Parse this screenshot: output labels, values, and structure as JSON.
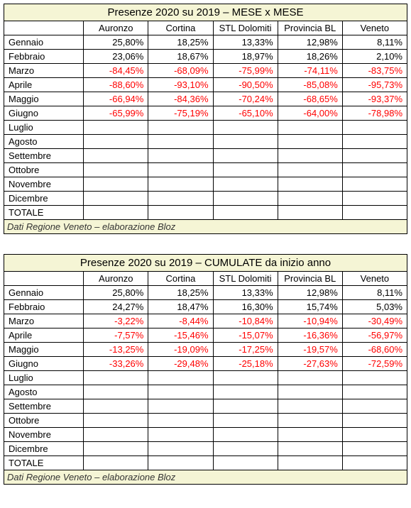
{
  "colors": {
    "title_bg": "#f5f5d5",
    "border": "#000000",
    "neg": "#ff0000",
    "pos": "#000000"
  },
  "columns": [
    "Auronzo",
    "Cortina",
    "STL Dolomiti",
    "Provincia BL",
    "Veneto"
  ],
  "months": [
    "Gennaio",
    "Febbraio",
    "Marzo",
    "Aprile",
    "Maggio",
    "Giugno",
    "Luglio",
    "Agosto",
    "Settembre",
    "Ottobre",
    "Novembre",
    "Dicembre",
    "TOTALE"
  ],
  "footer": "Dati Regione Veneto – elaborazione Bloz",
  "tables": [
    {
      "title": "Presenze 2020 su 2019 – MESE x MESE",
      "rows": {
        "Gennaio": [
          {
            "v": "25,80%",
            "n": false
          },
          {
            "v": "18,25%",
            "n": false
          },
          {
            "v": "13,33%",
            "n": false
          },
          {
            "v": "12,98%",
            "n": false
          },
          {
            "v": "8,11%",
            "n": false
          }
        ],
        "Febbraio": [
          {
            "v": "23,06%",
            "n": false
          },
          {
            "v": "18,67%",
            "n": false
          },
          {
            "v": "18,97%",
            "n": false
          },
          {
            "v": "18,26%",
            "n": false
          },
          {
            "v": "2,10%",
            "n": false
          }
        ],
        "Marzo": [
          {
            "v": "-84,45%",
            "n": true
          },
          {
            "v": "-68,09%",
            "n": true
          },
          {
            "v": "-75,99%",
            "n": true
          },
          {
            "v": "-74,11%",
            "n": true
          },
          {
            "v": "-83,75%",
            "n": true
          }
        ],
        "Aprile": [
          {
            "v": "-88,60%",
            "n": true
          },
          {
            "v": "-93,10%",
            "n": true
          },
          {
            "v": "-90,50%",
            "n": true
          },
          {
            "v": "-85,08%",
            "n": true
          },
          {
            "v": "-95,73%",
            "n": true
          }
        ],
        "Maggio": [
          {
            "v": "-66,94%",
            "n": true
          },
          {
            "v": "-84,36%",
            "n": true
          },
          {
            "v": "-70,24%",
            "n": true
          },
          {
            "v": "-68,65%",
            "n": true
          },
          {
            "v": "-93,37%",
            "n": true
          }
        ],
        "Giugno": [
          {
            "v": "-65,99%",
            "n": true
          },
          {
            "v": "-75,19%",
            "n": true
          },
          {
            "v": "-65,10%",
            "n": true
          },
          {
            "v": "-64,00%",
            "n": true
          },
          {
            "v": "-78,98%",
            "n": true
          }
        ]
      }
    },
    {
      "title": "Presenze 2020 su 2019 – CUMULATE da inizio anno",
      "rows": {
        "Gennaio": [
          {
            "v": "25,80%",
            "n": false
          },
          {
            "v": "18,25%",
            "n": false
          },
          {
            "v": "13,33%",
            "n": false
          },
          {
            "v": "12,98%",
            "n": false
          },
          {
            "v": "8,11%",
            "n": false
          }
        ],
        "Febbraio": [
          {
            "v": "24,27%",
            "n": false
          },
          {
            "v": "18,47%",
            "n": false
          },
          {
            "v": "16,30%",
            "n": false
          },
          {
            "v": "15,74%",
            "n": false
          },
          {
            "v": "5,03%",
            "n": false
          }
        ],
        "Marzo": [
          {
            "v": "-3,22%",
            "n": true
          },
          {
            "v": "-8,44%",
            "n": true
          },
          {
            "v": "-10,84%",
            "n": true
          },
          {
            "v": "-10,94%",
            "n": true
          },
          {
            "v": "-30,49%",
            "n": true
          }
        ],
        "Aprile": [
          {
            "v": "-7,57%",
            "n": true
          },
          {
            "v": "-15,46%",
            "n": true
          },
          {
            "v": "-15,07%",
            "n": true
          },
          {
            "v": "-16,36%",
            "n": true
          },
          {
            "v": "-56,97%",
            "n": true
          }
        ],
        "Maggio": [
          {
            "v": "-13,25%",
            "n": true
          },
          {
            "v": "-19,09%",
            "n": true
          },
          {
            "v": "-17,25%",
            "n": true
          },
          {
            "v": "-19,57%",
            "n": true
          },
          {
            "v": "-68,60%",
            "n": true
          }
        ],
        "Giugno": [
          {
            "v": "-33,26%",
            "n": true
          },
          {
            "v": "-29,48%",
            "n": true
          },
          {
            "v": "-25,18%",
            "n": true
          },
          {
            "v": "-27,63%",
            "n": true
          },
          {
            "v": "-72,59%",
            "n": true
          }
        ]
      }
    }
  ]
}
